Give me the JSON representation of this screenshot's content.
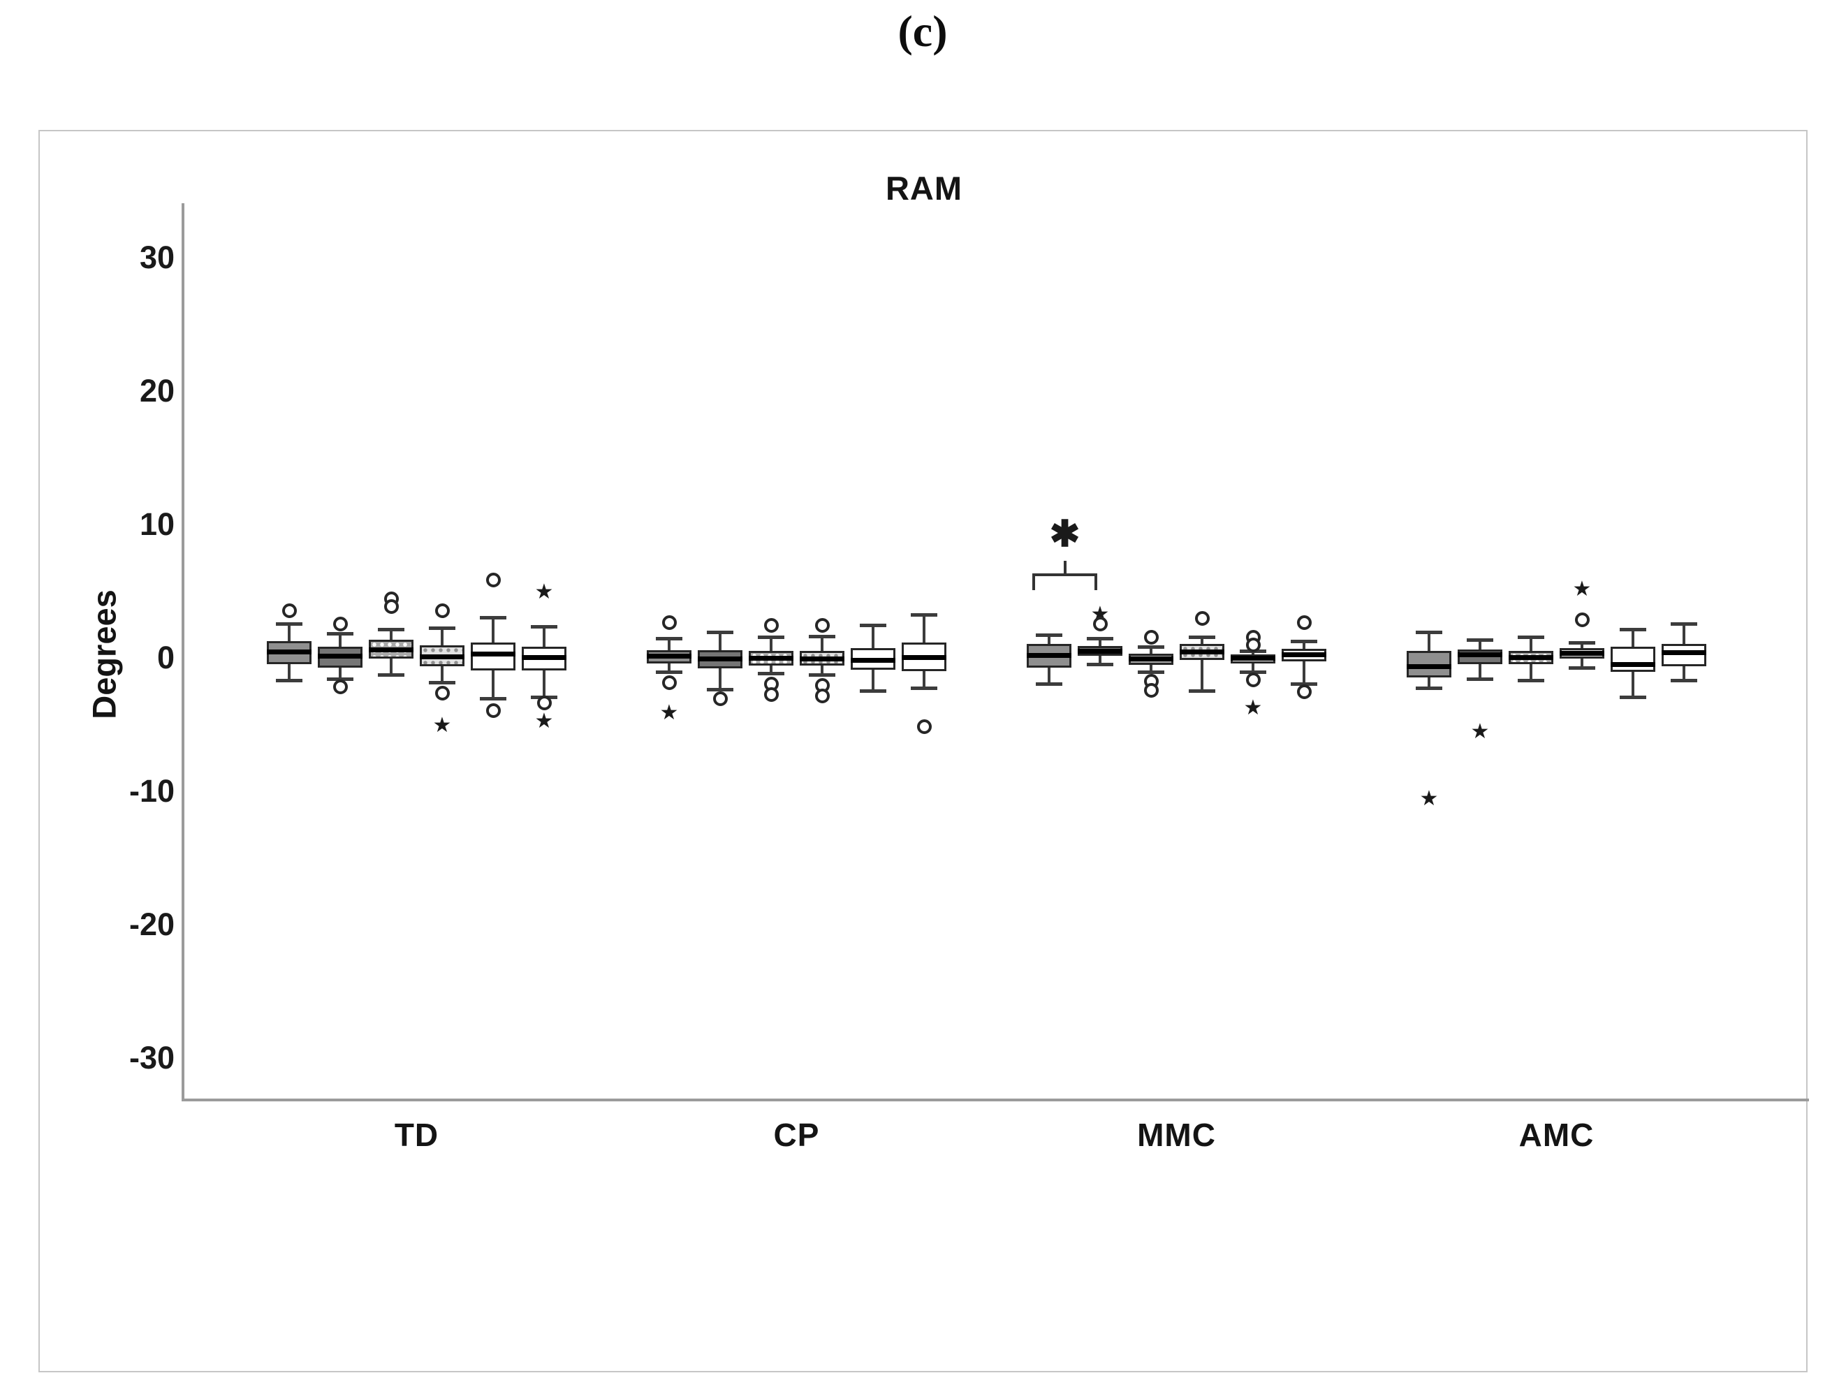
{
  "figure": {
    "panel_label": "(c)"
  },
  "chart_data": {
    "type": "box",
    "title": "RAM",
    "ylabel": "Degrees",
    "xlabel": "",
    "yticks": [
      30,
      20,
      10,
      0,
      -10,
      -20,
      -30
    ],
    "ylim": [
      -33,
      34
    ],
    "grid": false,
    "legend": "none",
    "categories": [
      "TD",
      "CP",
      "MMC",
      "AMC"
    ],
    "boxes_per_group": 6,
    "colors": {
      "axis": "#9b9b9b",
      "box_border": "#262626",
      "median": "#000000",
      "whisker": "#3c3c3c",
      "panel_border": "#c6c6c6"
    },
    "box_styles": [
      {
        "kind": "solid",
        "fill": "#8f8f8f"
      },
      {
        "kind": "solid",
        "fill": "#757575"
      },
      {
        "kind": "dots",
        "base": "#a9a9a9",
        "dot": "#ffffff"
      },
      {
        "kind": "dots",
        "base": "#e2e2e2",
        "dot": "#8f8f8f"
      },
      {
        "kind": "solid",
        "fill": "#ffffff"
      },
      {
        "kind": "solid",
        "fill": "#ffffff"
      }
    ],
    "groups": [
      {
        "label": "TD",
        "boxes": [
          {
            "lo": -1.6,
            "q1": -0.4,
            "med": 0.5,
            "q3": 1.3,
            "hi": 2.6,
            "outliers": [
              {
                "v": 3.6,
                "t": "circle"
              }
            ]
          },
          {
            "lo": -1.5,
            "q1": -0.7,
            "med": 0.2,
            "q3": 0.9,
            "hi": 1.9,
            "outliers": [
              {
                "v": 2.6,
                "t": "circle"
              },
              {
                "v": -2.1,
                "t": "circle"
              }
            ]
          },
          {
            "lo": -1.2,
            "q1": 0.0,
            "med": 0.7,
            "q3": 1.4,
            "hi": 2.2,
            "outliers": [
              {
                "v": 4.5,
                "t": "circle"
              },
              {
                "v": 3.9,
                "t": "circle"
              }
            ]
          },
          {
            "lo": -1.8,
            "q1": -0.6,
            "med": 0.15,
            "q3": 1.0,
            "hi": 2.3,
            "outliers": [
              {
                "v": 3.6,
                "t": "circle"
              },
              {
                "v": -2.6,
                "t": "circle"
              },
              {
                "v": -5.0,
                "t": "star"
              }
            ]
          },
          {
            "lo": -3.0,
            "q1": -0.9,
            "med": 0.35,
            "q3": 1.2,
            "hi": 3.1,
            "outliers": [
              {
                "v": 5.9,
                "t": "circle"
              },
              {
                "v": -3.9,
                "t": "circle"
              }
            ]
          },
          {
            "lo": -2.9,
            "q1": -0.9,
            "med": 0.1,
            "q3": 0.9,
            "hi": 2.4,
            "outliers": [
              {
                "v": 5.0,
                "t": "star"
              },
              {
                "v": -3.3,
                "t": "circle"
              },
              {
                "v": -4.7,
                "t": "star"
              }
            ]
          }
        ]
      },
      {
        "label": "CP",
        "boxes": [
          {
            "lo": -1.0,
            "q1": -0.35,
            "med": 0.2,
            "q3": 0.65,
            "hi": 1.5,
            "outliers": [
              {
                "v": 2.7,
                "t": "circle"
              },
              {
                "v": -1.8,
                "t": "circle"
              },
              {
                "v": -4.1,
                "t": "star"
              }
            ]
          },
          {
            "lo": -2.3,
            "q1": -0.75,
            "med": 0.0,
            "q3": 0.65,
            "hi": 2.0,
            "outliers": [
              {
                "v": -3.0,
                "t": "circle"
              }
            ]
          },
          {
            "lo": -1.1,
            "q1": -0.5,
            "med": 0.05,
            "q3": 0.55,
            "hi": 1.6,
            "outliers": [
              {
                "v": 2.5,
                "t": "circle"
              },
              {
                "v": -1.9,
                "t": "circle"
              },
              {
                "v": -2.7,
                "t": "circle"
              }
            ]
          },
          {
            "lo": -1.2,
            "q1": -0.55,
            "med": 0.0,
            "q3": 0.6,
            "hi": 1.7,
            "outliers": [
              {
                "v": 2.5,
                "t": "circle"
              },
              {
                "v": -2.0,
                "t": "circle"
              },
              {
                "v": -2.8,
                "t": "circle"
              }
            ]
          },
          {
            "lo": -2.4,
            "q1": -0.85,
            "med": -0.1,
            "q3": 0.8,
            "hi": 2.5,
            "outliers": []
          },
          {
            "lo": -2.2,
            "q1": -0.95,
            "med": 0.1,
            "q3": 1.2,
            "hi": 3.3,
            "outliers": [
              {
                "v": -5.1,
                "t": "circle"
              }
            ]
          }
        ]
      },
      {
        "label": "MMC",
        "boxes": [
          {
            "lo": -1.9,
            "q1": -0.7,
            "med": 0.25,
            "q3": 1.1,
            "hi": 1.8,
            "outliers": []
          },
          {
            "lo": -0.4,
            "q1": 0.2,
            "med": 0.6,
            "q3": 0.95,
            "hi": 1.5,
            "outliers": [
              {
                "v": 3.3,
                "t": "star"
              },
              {
                "v": 2.6,
                "t": "circle"
              }
            ]
          },
          {
            "lo": -1.0,
            "q1": -0.45,
            "med": 0.0,
            "q3": 0.35,
            "hi": 0.9,
            "outliers": [
              {
                "v": 1.6,
                "t": "circle"
              },
              {
                "v": -1.7,
                "t": "circle"
              },
              {
                "v": -2.4,
                "t": "circle"
              }
            ]
          },
          {
            "lo": -2.4,
            "q1": -0.1,
            "med": 0.5,
            "q3": 1.1,
            "hi": 1.6,
            "outliers": [
              {
                "v": 3.0,
                "t": "circle"
              }
            ]
          },
          {
            "lo": -1.0,
            "q1": -0.35,
            "med": 0.05,
            "q3": 0.3,
            "hi": 0.6,
            "outliers": [
              {
                "v": 1.6,
                "t": "circle"
              },
              {
                "v": 1.0,
                "t": "circle"
              },
              {
                "v": -1.6,
                "t": "circle"
              },
              {
                "v": -3.7,
                "t": "star"
              }
            ]
          },
          {
            "lo": -1.9,
            "q1": -0.2,
            "med": 0.3,
            "q3": 0.75,
            "hi": 1.3,
            "outliers": [
              {
                "v": 2.7,
                "t": "circle"
              },
              {
                "v": -2.5,
                "t": "circle"
              }
            ]
          }
        ]
      },
      {
        "label": "AMC",
        "boxes": [
          {
            "lo": -2.2,
            "q1": -1.4,
            "med": -0.6,
            "q3": 0.6,
            "hi": 2.0,
            "outliers": [
              {
                "v": -10.5,
                "t": "star"
              }
            ]
          },
          {
            "lo": -1.5,
            "q1": -0.4,
            "med": 0.3,
            "q3": 0.7,
            "hi": 1.4,
            "outliers": [
              {
                "v": -5.5,
                "t": "star"
              }
            ]
          },
          {
            "lo": -1.6,
            "q1": -0.4,
            "med": 0.1,
            "q3": 0.6,
            "hi": 1.6,
            "outliers": []
          },
          {
            "lo": -0.7,
            "q1": 0.0,
            "med": 0.4,
            "q3": 0.8,
            "hi": 1.2,
            "outliers": [
              {
                "v": 5.2,
                "t": "star"
              },
              {
                "v": 2.9,
                "t": "circle"
              }
            ]
          },
          {
            "lo": -2.9,
            "q1": -1.0,
            "med": -0.4,
            "q3": 0.9,
            "hi": 2.2,
            "outliers": []
          },
          {
            "lo": -1.6,
            "q1": -0.6,
            "med": 0.45,
            "q3": 1.1,
            "hi": 2.6,
            "outliers": []
          }
        ]
      }
    ],
    "significance": {
      "group_index": 2,
      "box_indexes": [
        0,
        1
      ],
      "symbol": "✱",
      "bracket_value": 6.4,
      "symbol_value": 9.3
    },
    "outlier_marker_glyphs": {
      "circle": "○",
      "star": "★"
    }
  }
}
